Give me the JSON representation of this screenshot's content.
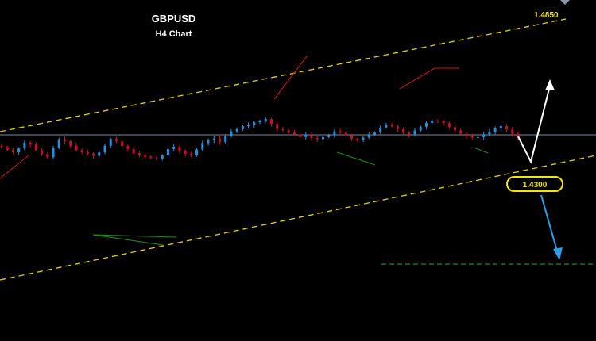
{
  "chart_data": {
    "type": "line",
    "title": "GBPUSD",
    "subtitle": "H4 Chart",
    "series": [
      {
        "values": [
          1.447,
          1.4442,
          1.442,
          1.4455,
          1.451,
          1.4492,
          1.444,
          1.4402,
          1.4375,
          1.446,
          1.454,
          1.4522,
          1.448,
          1.444,
          1.442,
          1.4408,
          1.4388,
          1.4418,
          1.448,
          1.4542,
          1.452,
          1.4478,
          1.445,
          1.4412,
          1.439,
          1.438,
          1.4368,
          1.436,
          1.4392,
          1.445,
          1.447,
          1.4432,
          1.4405,
          1.4392,
          1.4445,
          1.4505,
          1.4532,
          1.4545,
          1.4515,
          1.4565,
          1.4612,
          1.4632,
          1.466,
          1.4672,
          1.4695,
          1.471,
          1.4725,
          1.468,
          1.4632,
          1.4622,
          1.46,
          1.4585,
          1.456,
          1.4582,
          1.4552,
          1.454,
          1.456,
          1.4578,
          1.4612,
          1.46,
          1.4575,
          1.4545,
          1.453,
          1.4555,
          1.4578,
          1.46,
          1.4648,
          1.4672,
          1.466,
          1.4632,
          1.46,
          1.4585,
          1.462,
          1.4655,
          1.469,
          1.471,
          1.4705,
          1.4688,
          1.465,
          1.4622,
          1.459,
          1.4568,
          1.4555,
          1.456,
          1.4585,
          1.4608,
          1.464,
          1.466,
          1.463,
          1.459,
          1.4545
        ]
      }
    ],
    "annotations": {
      "upper_level": "1.4850",
      "target_level": "1.4300"
    }
  }
}
